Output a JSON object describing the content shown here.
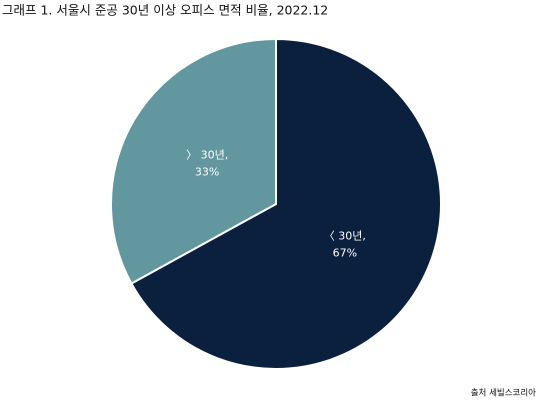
{
  "chart_data": {
    "type": "pie",
    "title": "그래프 1. 서울시 준공 30년 이상 오피스 면적 비율, 2022.12",
    "categories": [
      "〈 30년,",
      "〉 30년,"
    ],
    "values": [
      67,
      33
    ],
    "value_labels": [
      "67%",
      "33%"
    ],
    "colors": [
      "#0b1f3f",
      "#6297a0"
    ],
    "source": "출처 세빌스코리아"
  }
}
